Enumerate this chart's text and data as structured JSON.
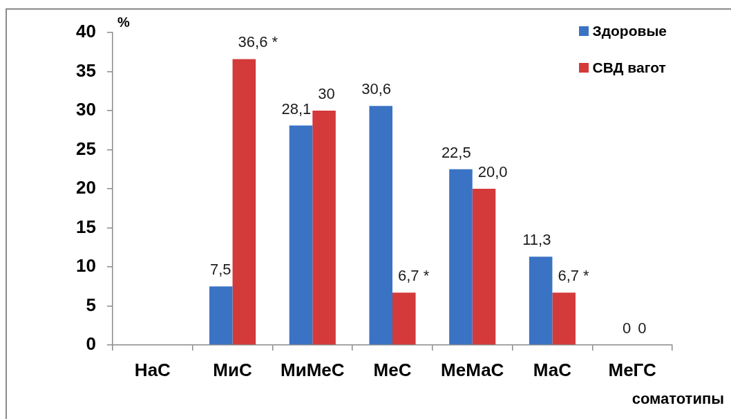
{
  "chart_data": {
    "type": "bar",
    "xlabel": "соматотипы",
    "ylabel": "%",
    "categories": [
      "НаС",
      "МиС",
      "МиМеС",
      "МеС",
      "МеМаС",
      "МаС",
      "МеГС"
    ],
    "series": [
      {
        "name": "Здоровые",
        "color": "#3a73c4",
        "values": [
          0,
          7.5,
          28.1,
          30.6,
          22.5,
          11.3,
          0
        ],
        "value_labels": [
          null,
          "7,5",
          "28,1",
          "30,6",
          "22,5",
          "11,3",
          "0"
        ]
      },
      {
        "name": "СВД вагот",
        "color": "#d43a3a",
        "values": [
          0,
          36.6,
          30,
          6.7,
          20.0,
          6.7,
          0
        ],
        "value_labels": [
          null,
          "36,6 *",
          "30",
          "6,7 *",
          "20,0",
          "6,7 *",
          "0"
        ]
      }
    ],
    "ylim": [
      0,
      40
    ],
    "yticks": [
      0,
      5,
      10,
      15,
      20,
      25,
      30,
      35,
      40
    ],
    "legend": "top right"
  }
}
